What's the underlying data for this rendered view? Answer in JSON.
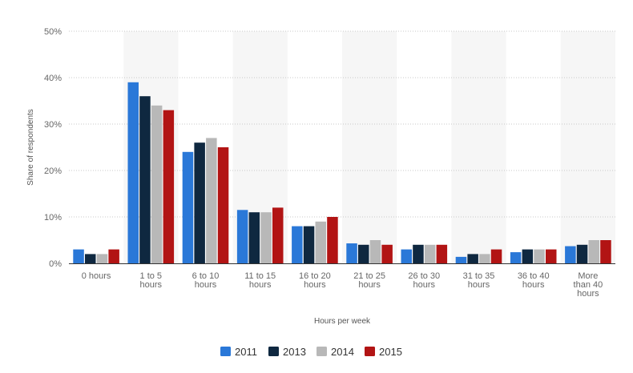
{
  "chart_data": {
    "type": "bar",
    "categories": [
      [
        "0 hours"
      ],
      [
        "1 to 5",
        "hours"
      ],
      [
        "6 to 10",
        "hours"
      ],
      [
        "11 to 15",
        "hours"
      ],
      [
        "16 to 20",
        "hours"
      ],
      [
        "21 to 25",
        "hours"
      ],
      [
        "26 to 30",
        "hours"
      ],
      [
        "31 to 35",
        "hours"
      ],
      [
        "36 to 40",
        "hours"
      ],
      [
        "More",
        "than 40",
        "hours"
      ]
    ],
    "series": [
      {
        "name": "2011",
        "color": "#2a78d8",
        "values": [
          3,
          39,
          24,
          11.5,
          8,
          4.3,
          3,
          1.4,
          2.4,
          3.7
        ]
      },
      {
        "name": "2013",
        "color": "#0f2840",
        "values": [
          2,
          36,
          26,
          11,
          8,
          4,
          4,
          2,
          3,
          4
        ]
      },
      {
        "name": "2014",
        "color": "#b8b8b8",
        "values": [
          2,
          34,
          27,
          11,
          9,
          5,
          4,
          2,
          3,
          5
        ]
      },
      {
        "name": "2015",
        "color": "#b21414",
        "values": [
          3,
          33,
          25,
          12,
          10,
          4,
          4,
          3,
          3,
          5
        ]
      }
    ],
    "yticks": [
      "0%",
      "10%",
      "20%",
      "30%",
      "40%",
      "50%"
    ],
    "ytick_values": [
      0,
      10,
      20,
      30,
      40,
      50
    ],
    "ylim": [
      0,
      50
    ],
    "xlabel": "Hours per week",
    "ylabel": "Share of respondents",
    "grid": true,
    "legend": "bottom-center"
  }
}
